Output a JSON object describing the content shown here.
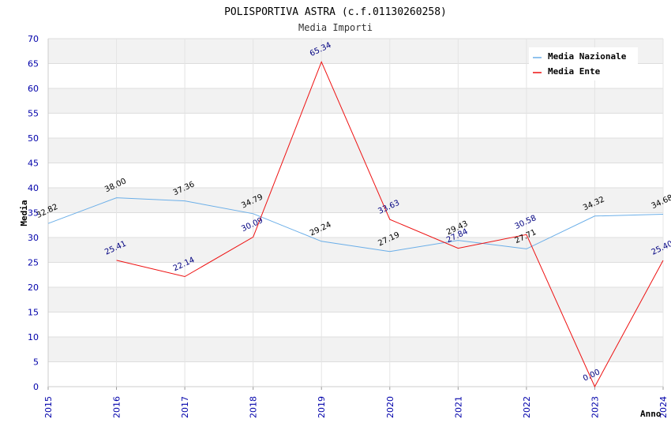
{
  "chart_data": {
    "type": "line",
    "title": "POLISPORTIVA ASTRA (c.f.01130260258)",
    "subtitle": "Media Importi",
    "xlabel": "Anno",
    "ylabel": "Media",
    "x": [
      "2015",
      "2016",
      "2017",
      "2018",
      "2019",
      "2020",
      "2021",
      "2022",
      "2023",
      "2024"
    ],
    "ylim": [
      0,
      70
    ],
    "yticks": [
      "0",
      "5",
      "10",
      "15",
      "20",
      "25",
      "30",
      "35",
      "40",
      "45",
      "50",
      "55",
      "60",
      "65",
      "70"
    ],
    "legend_position": "top-right",
    "series": [
      {
        "name": "Media Nazionale",
        "color": "#6aaee8",
        "label_color": "#000000",
        "values": [
          32.82,
          38.0,
          37.36,
          34.79,
          29.24,
          27.19,
          29.43,
          27.71,
          34.32,
          34.68
        ],
        "labels": [
          "32.82",
          "38.00",
          "37.36",
          "34.79",
          "29.24",
          "27.19",
          "29.43",
          "27.71",
          "34.32",
          "34.68"
        ]
      },
      {
        "name": "Media Ente",
        "color": "#ee1111",
        "label_color": "#000080",
        "values": [
          null,
          25.41,
          22.14,
          30.09,
          65.34,
          33.63,
          27.84,
          30.58,
          0.0,
          25.4
        ],
        "labels": [
          "",
          "25.41",
          "22.14",
          "30.09",
          "65.34",
          "33.63",
          "27.84",
          "30.58",
          "0.00",
          "25.40"
        ]
      }
    ]
  }
}
